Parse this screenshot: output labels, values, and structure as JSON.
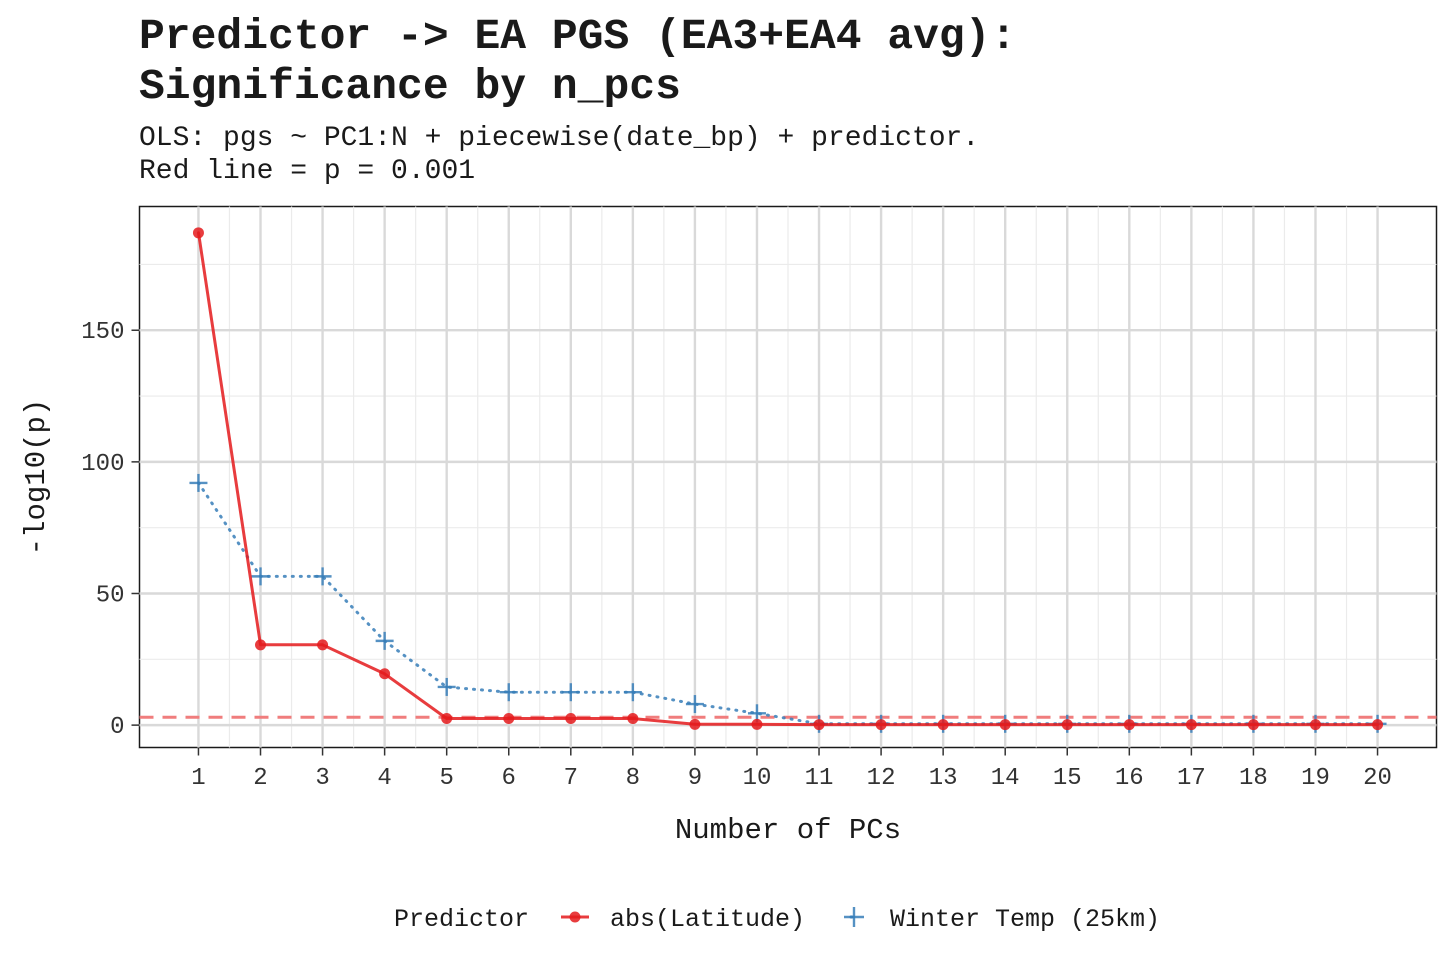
{
  "chart_data": {
    "type": "line",
    "title_line1": "Predictor -> EA PGS (EA3+EA4 avg):",
    "title_line2": "Significance by n_pcs",
    "subtitle_line1": "OLS: pgs ~ PC1:N + piecewise(date_bp) + predictor.",
    "subtitle_line2": "Red line = p = 0.001",
    "xlabel": "Number of PCs",
    "ylabel": "-log10(p)",
    "x": [
      1,
      2,
      3,
      4,
      5,
      6,
      7,
      8,
      9,
      10,
      11,
      12,
      13,
      14,
      15,
      16,
      17,
      18,
      19,
      20
    ],
    "xlim": [
      0.05,
      20.95
    ],
    "ylim": [
      -8.5,
      197
    ],
    "yticks": [
      0,
      50,
      100,
      150
    ],
    "reference_line": {
      "y": 3,
      "color": "#f07d7d",
      "style": "dashed"
    },
    "legend": {
      "title": "Predictor",
      "position": "bottom"
    },
    "series": [
      {
        "name": "abs(Latitude)",
        "color": "#e41a1c",
        "line": "solid",
        "marker": "circle",
        "values": [
          187,
          30.5,
          30.5,
          19.5,
          2.5,
          2.5,
          2.5,
          2.5,
          0.3,
          0.3,
          0.2,
          0.2,
          0.2,
          0.2,
          0.2,
          0.2,
          0.2,
          0.2,
          0.2,
          0.2
        ]
      },
      {
        "name": "Winter Temp (25km)",
        "color": "#377eb8",
        "line": "dotted",
        "marker": "plus",
        "values": [
          92,
          56.5,
          56.5,
          32,
          14.5,
          12.5,
          12.5,
          12.5,
          8,
          4.5,
          0.5,
          0.5,
          0.5,
          0.5,
          0.5,
          0.5,
          0.5,
          0.5,
          0.5,
          0.5
        ]
      }
    ]
  }
}
